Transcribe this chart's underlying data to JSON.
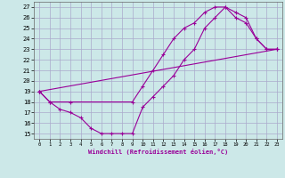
{
  "xlabel": "Windchill (Refroidissement éolien,°C)",
  "bg_color": "#cce8e8",
  "grid_color": "#aaaacc",
  "line_color": "#990099",
  "xlim": [
    -0.5,
    23.5
  ],
  "ylim": [
    14.5,
    27.5
  ],
  "yticks": [
    15,
    16,
    17,
    18,
    19,
    20,
    21,
    22,
    23,
    24,
    25,
    26,
    27
  ],
  "xticks": [
    0,
    1,
    2,
    3,
    4,
    5,
    6,
    7,
    8,
    9,
    10,
    11,
    12,
    13,
    14,
    15,
    16,
    17,
    18,
    19,
    20,
    21,
    22,
    23
  ],
  "line1_x": [
    0,
    1,
    2,
    3,
    4,
    5,
    6,
    7,
    8,
    9,
    10,
    11,
    12,
    13,
    14,
    15,
    16,
    17,
    18,
    19,
    20,
    21,
    22,
    23
  ],
  "line1_y": [
    19,
    18,
    17.3,
    17,
    16.5,
    15.5,
    15,
    15,
    15,
    15,
    17.5,
    18.5,
    19.5,
    20.5,
    22,
    23,
    25,
    26,
    27,
    26,
    25.5,
    24,
    23,
    23
  ],
  "line2_x": [
    0,
    1,
    3,
    9,
    10,
    11,
    12,
    13,
    14,
    15,
    16,
    17,
    18,
    19,
    20,
    21,
    22,
    23
  ],
  "line2_y": [
    19,
    18,
    18,
    18,
    19.5,
    21,
    22.5,
    24,
    25,
    25.5,
    26.5,
    27,
    27,
    26.5,
    26,
    24,
    23,
    23
  ],
  "line3_x": [
    0,
    23
  ],
  "line3_y": [
    19,
    23
  ]
}
